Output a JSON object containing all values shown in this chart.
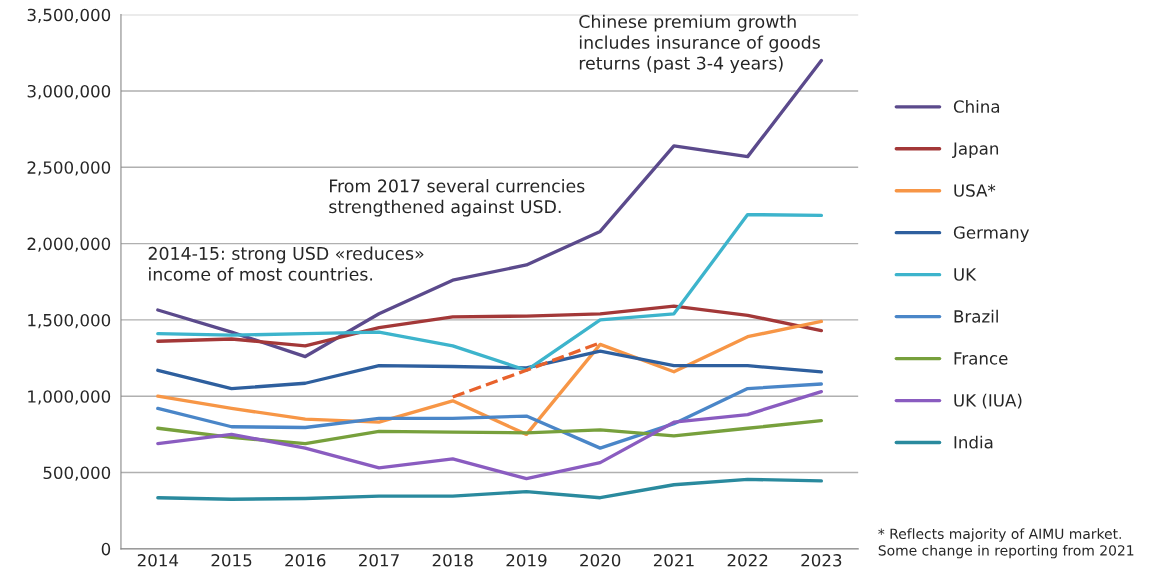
{
  "chart_data": {
    "type": "line",
    "categories": [
      "2014",
      "2015",
      "2016",
      "2017",
      "2018",
      "2019",
      "2020",
      "2021",
      "2022",
      "2023"
    ],
    "series": [
      {
        "name": "China",
        "color": "#5b4a8c",
        "values": [
          1565000,
          1420000,
          1260000,
          1540000,
          1760000,
          1860000,
          2080000,
          2640000,
          2570000,
          3200000
        ]
      },
      {
        "name": "Japan",
        "color": "#a33838",
        "values": [
          1360000,
          1375000,
          1330000,
          1450000,
          1520000,
          1525000,
          1540000,
          1590000,
          1530000,
          1430000
        ]
      },
      {
        "name": "USA*",
        "color": "#f79646",
        "values": [
          1000000,
          920000,
          850000,
          830000,
          970000,
          750000,
          1340000,
          1160000,
          1390000,
          1490000
        ]
      },
      {
        "name": "Germany",
        "color": "#2e5f9e",
        "values": [
          1170000,
          1050000,
          1085000,
          1200000,
          1195000,
          1185000,
          1295000,
          1200000,
          1200000,
          1160000
        ]
      },
      {
        "name": "UK",
        "color": "#3db4cc",
        "values": [
          1410000,
          1400000,
          1410000,
          1420000,
          1330000,
          1170000,
          1500000,
          1540000,
          2190000,
          2185000
        ]
      },
      {
        "name": "Brazil",
        "color": "#4a86c8",
        "values": [
          920000,
          800000,
          795000,
          855000,
          855000,
          870000,
          660000,
          820000,
          1050000,
          1080000
        ]
      },
      {
        "name": "France",
        "color": "#77a03c",
        "values": [
          790000,
          730000,
          690000,
          770000,
          765000,
          760000,
          780000,
          740000,
          790000,
          840000
        ]
      },
      {
        "name": "UK (IUA)",
        "color": "#8a5cc0",
        "values": [
          690000,
          750000,
          660000,
          530000,
          590000,
          460000,
          565000,
          830000,
          880000,
          1030000
        ]
      },
      {
        "name": "India",
        "color": "#2a8a9e",
        "values": [
          335000,
          325000,
          330000,
          345000,
          345000,
          375000,
          335000,
          420000,
          455000,
          445000
        ]
      },
      {
        "color": "#e8622c",
        "line_style": "dashed",
        "values": [
          null,
          null,
          null,
          null,
          995000,
          1170000,
          1350000,
          null,
          null,
          null
        ]
      }
    ],
    "ylim": [
      0,
      3500000
    ],
    "yticks": [
      {
        "value": 0,
        "label": "0"
      },
      {
        "value": 500000,
        "label": "500,000"
      },
      {
        "value": 1000000,
        "label": "1,000,000"
      },
      {
        "value": 1500000,
        "label": "1,500,000"
      },
      {
        "value": 2000000,
        "label": "2,000,000"
      },
      {
        "value": 2500000,
        "label": "2,500,000"
      },
      {
        "value": 3000000,
        "label": "3,000,000"
      },
      {
        "value": 3500000,
        "label": "3,500,000"
      }
    ],
    "grid": "y",
    "legend": "right",
    "marker": "none",
    "line_style": "solid",
    "annotations": [
      "Chinese premium growth\nincludes insurance of goods\nreturns (past 3-4 years)",
      "From 2017 several currencies\nstrengthened against USD.",
      "2014-15: strong USD «reduces»\nincome of most countries.",
      "* Reflects majority of AIMU market.\nSome change in reporting from 2021"
    ]
  }
}
